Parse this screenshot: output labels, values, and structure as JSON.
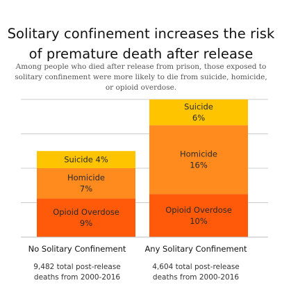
{
  "title_lines": [
    "Solitary confinement increases the risk",
    "of premature death after release"
  ],
  "subtitle": "Among people who died after release from prison, those exposed to solitary confinement were more likely to die from suicide, homicide, or opioid overdose.",
  "colors": {
    "opioid": "#ff5a0a",
    "homicide": "#ff8a1e",
    "suicide": "#ffc400",
    "grid": "#cccccc"
  },
  "chart_data": {
    "type": "bar",
    "stacked": true,
    "title": "Solitary confinement increases the risk of premature death after release",
    "categories": [
      "No Solitary Confinement",
      "Any Solitary Confinement"
    ],
    "category_notes": [
      [
        "9,482 total post-release",
        "deaths from 2000-2016"
      ],
      [
        "4,604 total post-release",
        "deaths from 2000-2016"
      ]
    ],
    "series": [
      {
        "name": "Opioid Overdose",
        "values": [
          9,
          10
        ],
        "labels": [
          [
            "Opioid Overdose",
            "9%"
          ],
          [
            "Opioid Overdose",
            "10%"
          ]
        ]
      },
      {
        "name": "Homicide",
        "values": [
          7,
          16
        ],
        "labels": [
          [
            "Homicide",
            "7%"
          ],
          [
            "Homicide",
            "16%"
          ]
        ]
      },
      {
        "name": "Suicide",
        "values": [
          4,
          6
        ],
        "labels": [
          [
            "Suicide  4%"
          ],
          [
            "Suicide",
            "6%"
          ]
        ]
      }
    ],
    "ylim": [
      0,
      32
    ],
    "grid": true
  }
}
